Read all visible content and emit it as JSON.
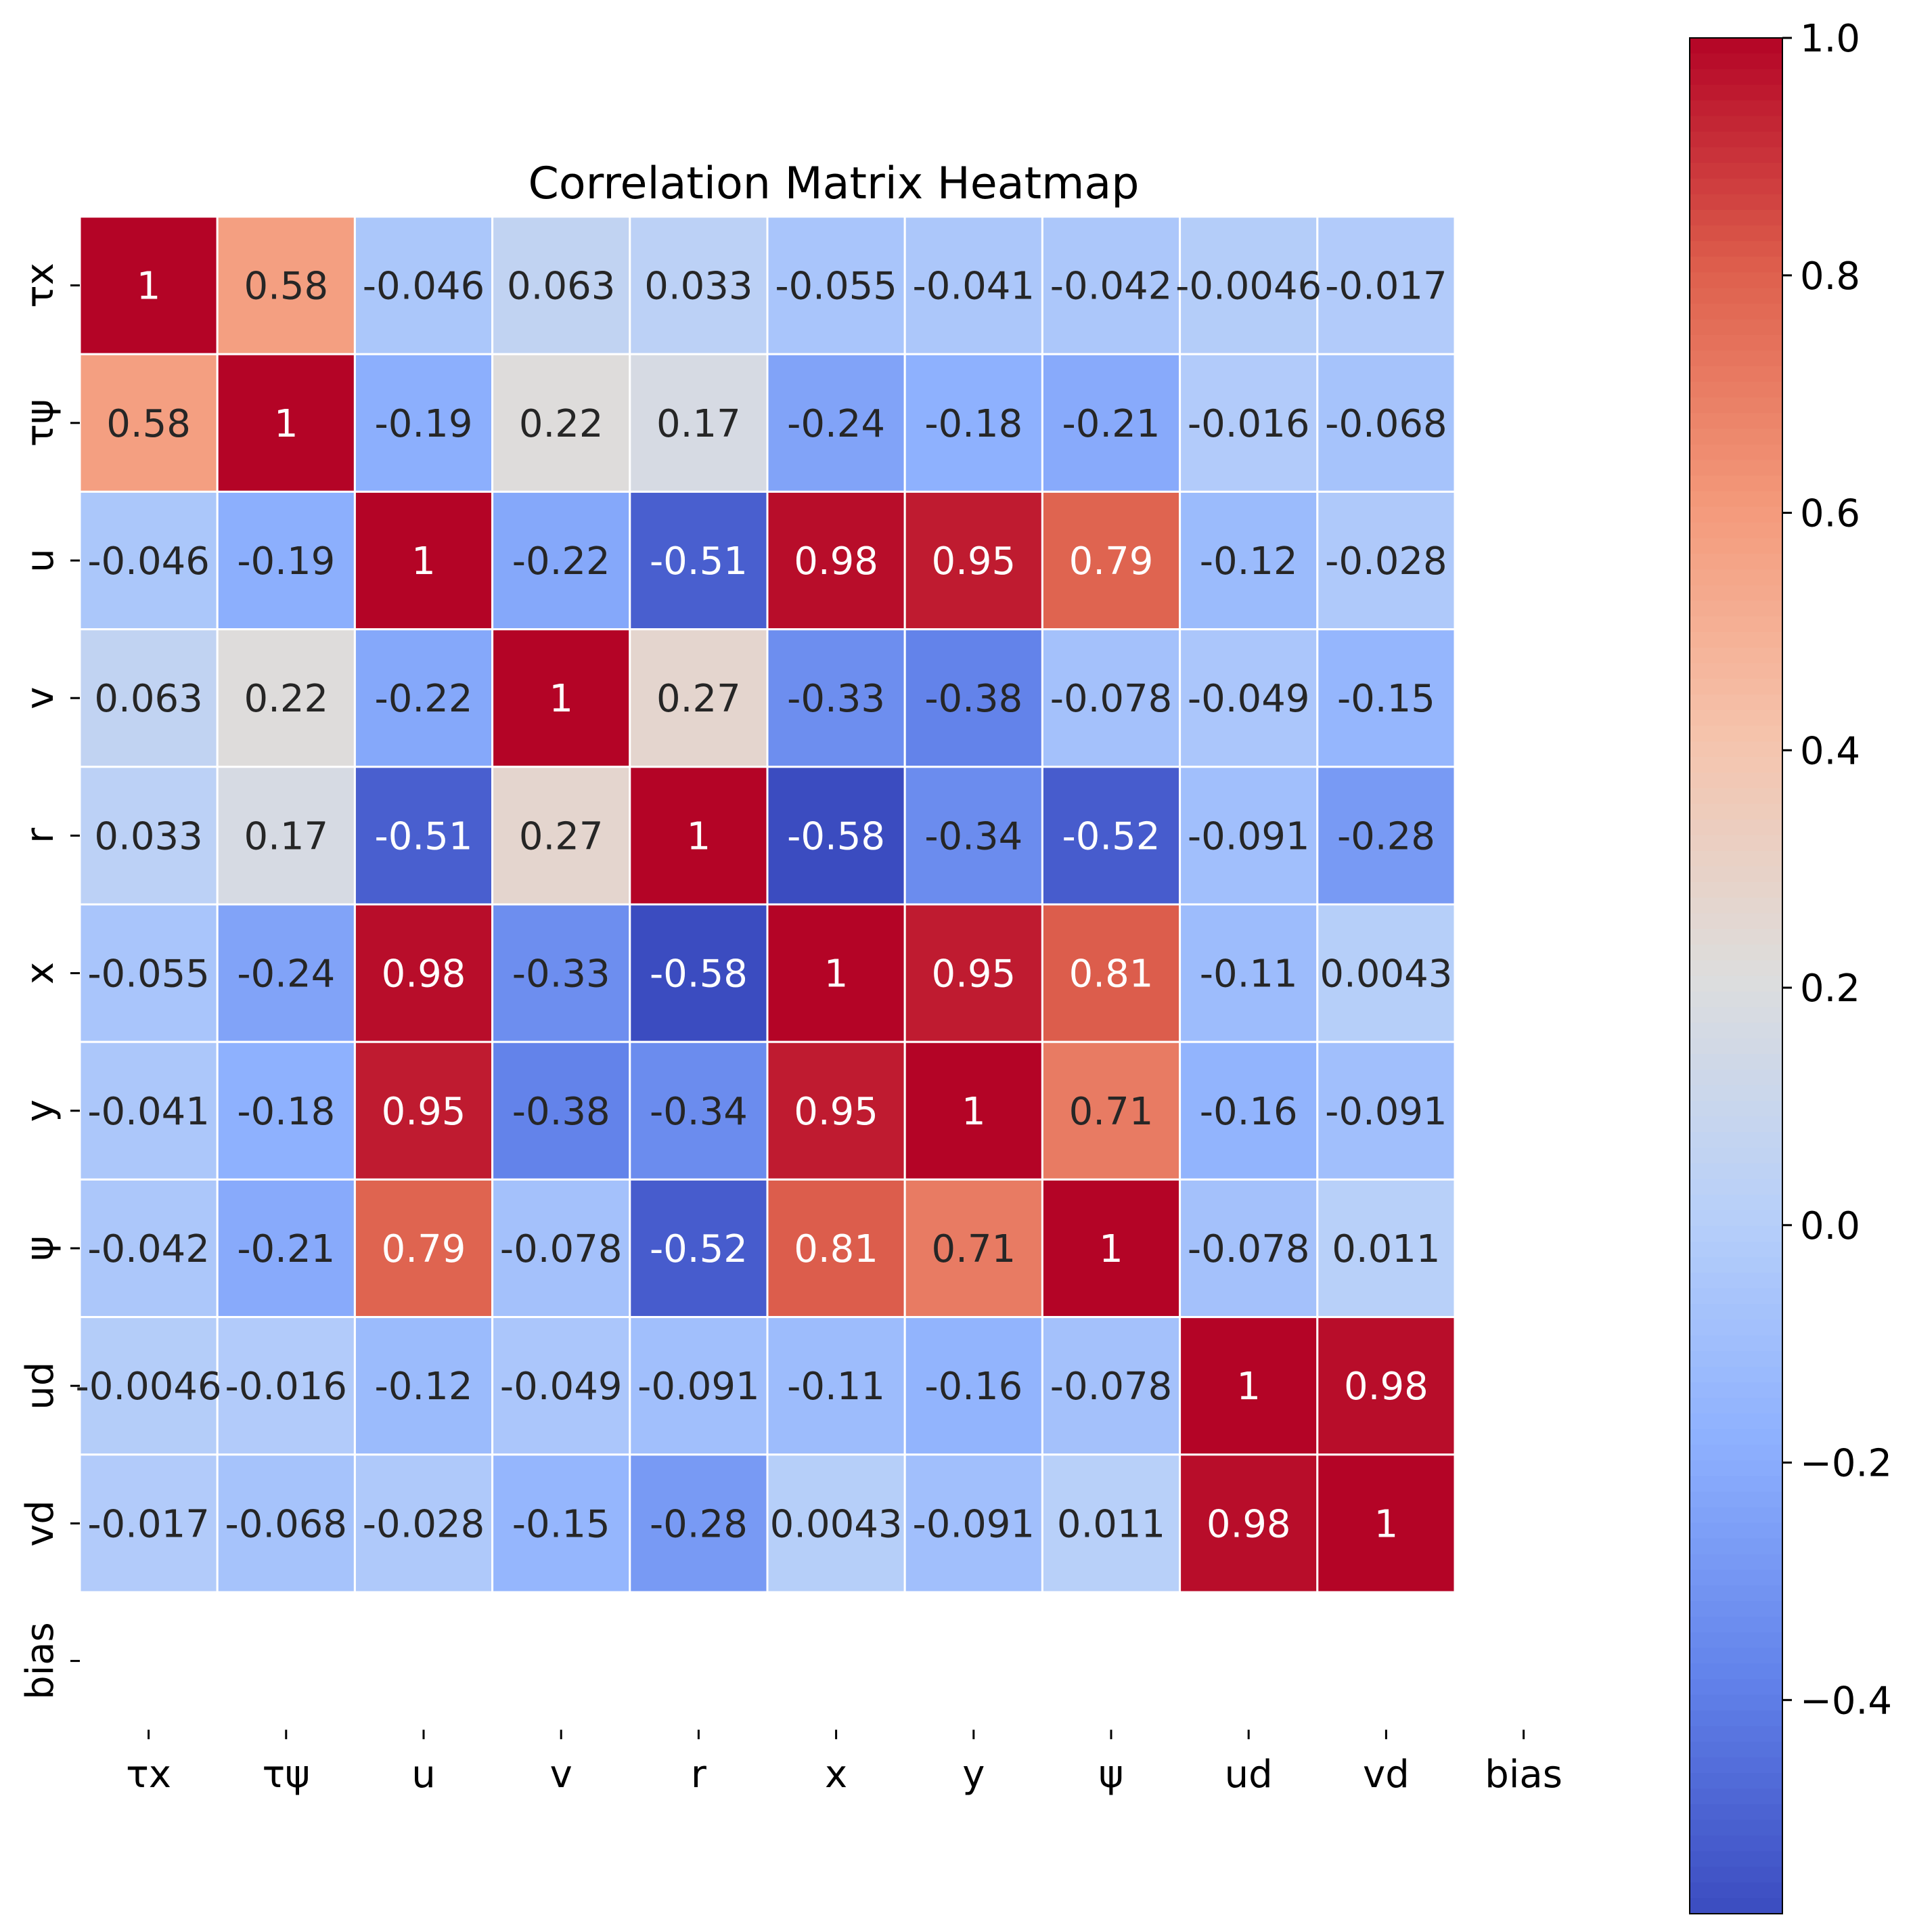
{
  "chart_data": {
    "type": "heatmap",
    "title": "Correlation Matrix Heatmap",
    "x_labels": [
      "τx",
      "τψ",
      "u",
      "v",
      "r",
      "x",
      "y",
      "ψ",
      "ud",
      "vd",
      "bias"
    ],
    "y_labels": [
      "τx",
      "τψ",
      "u",
      "v",
      "r",
      "x",
      "y",
      "ψ",
      "ud",
      "vd",
      "bias"
    ],
    "values": [
      [
        1,
        0.58,
        -0.046,
        0.063,
        0.033,
        -0.055,
        -0.041,
        -0.042,
        -0.0046,
        -0.017,
        null
      ],
      [
        0.58,
        1,
        -0.19,
        0.22,
        0.17,
        -0.24,
        -0.18,
        -0.21,
        -0.016,
        -0.068,
        null
      ],
      [
        -0.046,
        -0.19,
        1,
        -0.22,
        -0.51,
        0.98,
        0.95,
        0.79,
        -0.12,
        -0.028,
        null
      ],
      [
        0.063,
        0.22,
        -0.22,
        1,
        0.27,
        -0.33,
        -0.38,
        -0.078,
        -0.049,
        -0.15,
        null
      ],
      [
        0.033,
        0.17,
        -0.51,
        0.27,
        1,
        -0.58,
        -0.34,
        -0.52,
        -0.091,
        -0.28,
        null
      ],
      [
        -0.055,
        -0.24,
        0.98,
        -0.33,
        -0.58,
        1,
        0.95,
        0.81,
        -0.11,
        0.0043,
        null
      ],
      [
        -0.041,
        -0.18,
        0.95,
        -0.38,
        -0.34,
        0.95,
        1,
        0.71,
        -0.16,
        -0.091,
        null
      ],
      [
        -0.042,
        -0.21,
        0.79,
        -0.078,
        -0.52,
        0.81,
        0.71,
        1,
        -0.078,
        0.011,
        null
      ],
      [
        -0.0046,
        -0.016,
        -0.12,
        -0.049,
        -0.091,
        -0.11,
        -0.16,
        -0.078,
        1,
        0.98,
        null
      ],
      [
        -0.017,
        -0.068,
        -0.028,
        -0.15,
        -0.28,
        0.0043,
        -0.091,
        0.011,
        0.98,
        1,
        null
      ],
      [
        null,
        null,
        null,
        null,
        null,
        null,
        null,
        null,
        null,
        null,
        null
      ]
    ],
    "colormap": "coolwarm",
    "color_range": [
      -0.58,
      1.0
    ],
    "colorbar_ticks": [
      1.0,
      0.8,
      0.6,
      0.4,
      0.2,
      0.0,
      -0.2,
      -0.4
    ],
    "colorbar_tick_labels": [
      "1.0",
      "0.8",
      "0.6",
      "0.4",
      "0.2",
      "0.0",
      "−0.2",
      "−0.4"
    ],
    "annotations": true,
    "grid_lines": "white"
  }
}
